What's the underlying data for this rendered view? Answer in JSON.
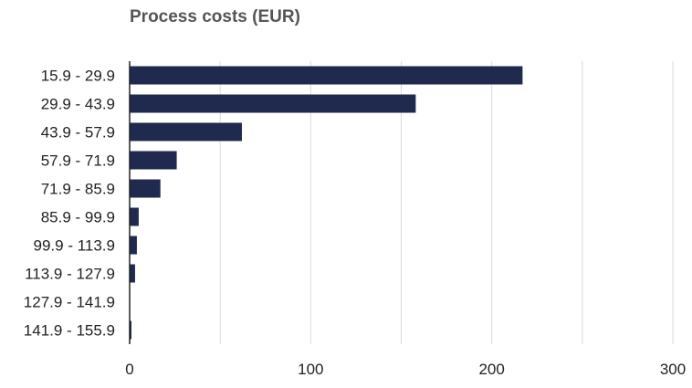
{
  "chart_data": {
    "type": "bar",
    "orientation": "horizontal",
    "title": "Process costs (EUR)",
    "categories": [
      "15.9 - 29.9",
      "29.9 - 43.9",
      "43.9 - 57.9",
      "57.9 - 71.9",
      "71.9 - 85.9",
      "85.9 - 99.9",
      "99.9 - 113.9",
      "113.9 - 127.9",
      "127.9 - 141.9",
      "141.9 - 155.9"
    ],
    "values": [
      217,
      158,
      62,
      26,
      17,
      5,
      4,
      3,
      0,
      1
    ],
    "xlim": [
      0,
      300
    ],
    "xticks": [
      0,
      100,
      200,
      300
    ],
    "grid": true,
    "bar_color": "#1f2a4e",
    "grid_color": "#d9d9d9",
    "axis_color": "#222222"
  }
}
